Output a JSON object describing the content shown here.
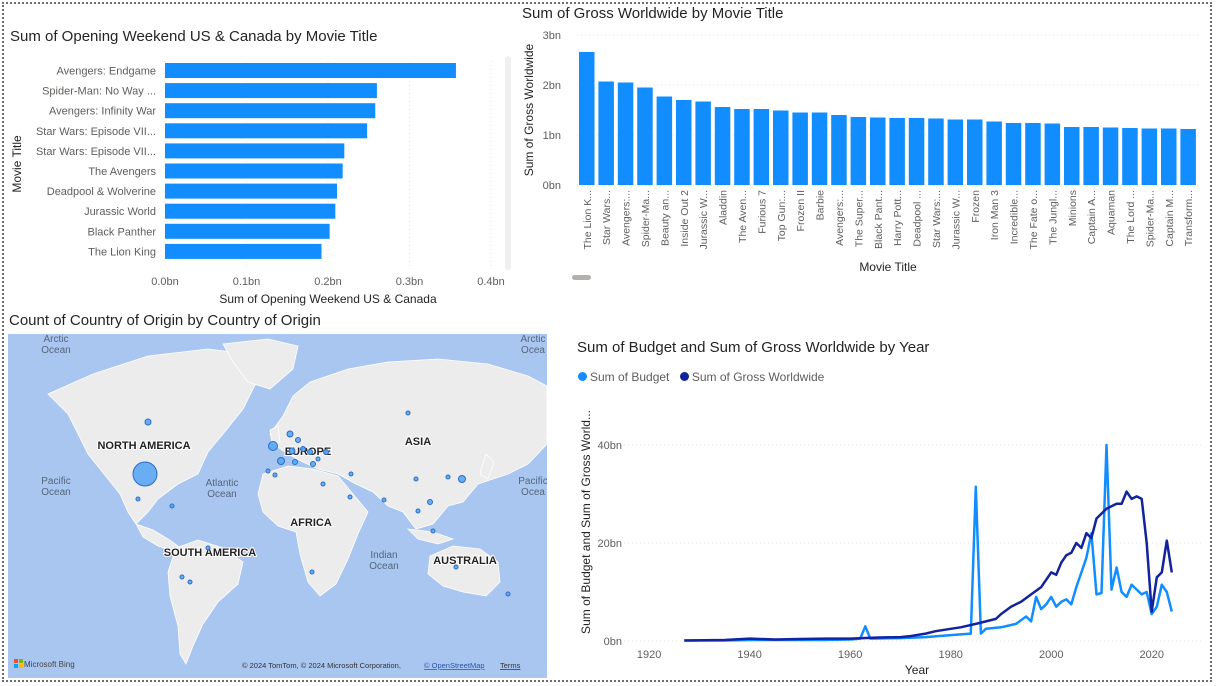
{
  "colors": {
    "bar": "#118dff",
    "budget": "#118dff",
    "gross": "#12239e",
    "map_water": "#a9c6f0",
    "map_land": "#eeeeee",
    "bubble": "#5ba6f5"
  },
  "opening_chart": {
    "title": "Sum of Opening Weekend US & Canada by Movie Title",
    "xlabel": "Sum of Opening Weekend US & Canada",
    "ylabel": "Movie Title",
    "chart_data": {
      "type": "bar",
      "orientation": "horizontal",
      "categories": [
        "Avengers: Endgame",
        "Spider-Man: No Way ...",
        "Avengers: Infinity War",
        "Star Wars: Episode VII...",
        "Star Wars: Episode VII...",
        "The Avengers",
        "Deadpool & Wolverine",
        "Jurassic World",
        "Black Panther",
        "The Lion King"
      ],
      "values": [
        0.357,
        0.26,
        0.258,
        0.248,
        0.22,
        0.218,
        0.211,
        0.209,
        0.202,
        0.192
      ],
      "xticks": [
        "0.0bn",
        "0.1bn",
        "0.2bn",
        "0.3bn",
        "0.4bn"
      ],
      "xlim": [
        0,
        0.4
      ],
      "unit": "bn"
    }
  },
  "gross_chart": {
    "title": "Sum of Gross Worldwide by Movie Title",
    "xlabel": "Movie Title",
    "ylabel": "Sum of Gross Worldwide",
    "chart_data": {
      "type": "bar",
      "categories": [
        "The Lion K...",
        "Star Wars...",
        "Avengers:...",
        "Spider-Ma...",
        "Beauty an...",
        "Inside Out 2",
        "Jurassic W...",
        "Aladdin",
        "The Aven...",
        "Furious 7",
        "Top Gun:...",
        "Frozen II",
        "Barbie",
        "Avengers:...",
        "The Super...",
        "Black Pant...",
        "Harry Pott...",
        "Deadpool ...",
        "Star Wars:...",
        "Jurassic W...",
        "Frozen",
        "Iron Man 3",
        "Incredible...",
        "The Fate o...",
        "The Jungl...",
        "Minions",
        "Captain A...",
        "Aquaman",
        "The Lord ...",
        "Spider-Ma...",
        "Captain M...",
        "Transform..."
      ],
      "values": [
        2.66,
        2.07,
        2.05,
        1.95,
        1.77,
        1.7,
        1.67,
        1.56,
        1.52,
        1.52,
        1.49,
        1.45,
        1.45,
        1.4,
        1.36,
        1.35,
        1.34,
        1.34,
        1.33,
        1.31,
        1.31,
        1.27,
        1.24,
        1.24,
        1.23,
        1.16,
        1.16,
        1.15,
        1.14,
        1.13,
        1.13,
        1.12
      ],
      "yticks": [
        "0bn",
        "1bn",
        "2bn",
        "3bn"
      ],
      "ylim": [
        0,
        3
      ],
      "unit": "bn"
    }
  },
  "map_chart": {
    "title": "Count of Country of Origin by Country of Origin",
    "labels": {
      "arctic_left": "Arctic\nOcean",
      "arctic_right": "Arctic\nOcea",
      "north_america": "NORTH AMERICA",
      "europe": "EUROPE",
      "asia": "ASIA",
      "atlantic": "Atlantic\nOcean",
      "pacific_left": "Pacific\nOcean",
      "pacific_right": "Pacific\nOcea",
      "africa": "AFRICA",
      "south_america": "SOUTH AMERICA",
      "indian": "Indian\nOcean",
      "australia": "AUSTRALIA"
    },
    "logo": "Microsoft Bing",
    "attribution": "© 2024 TomTom, © 2024 Microsoft Corporation,",
    "osm": "© OpenStreetMap",
    "terms": "Terms"
  },
  "line_chart": {
    "title": "Sum of Budget and Sum of Gross Worldwide by Year",
    "xlabel": "Year",
    "ylabel": "Sum of Budget and Sum of Gross World...",
    "legend": [
      "Sum of Budget",
      "Sum of Gross Worldwide"
    ],
    "chart_data": {
      "type": "line",
      "xlim": [
        1915,
        2030
      ],
      "ylim": [
        0,
        40
      ],
      "xticks": [
        "1920",
        "1940",
        "1960",
        "1980",
        "2000",
        "2020"
      ],
      "yticks": [
        "0bn",
        "20bn",
        "40bn"
      ],
      "unit": "bn",
      "series": [
        {
          "name": "Sum of Budget",
          "x": [
            1927,
            1935,
            1940,
            1945,
            1950,
            1955,
            1960,
            1962,
            1963,
            1964,
            1970,
            1975,
            1980,
            1984,
            1985,
            1986,
            1987,
            1990,
            1993,
            1995,
            1996,
            1997,
            1998,
            1999,
            2000,
            2001,
            2002,
            2003,
            2004,
            2005,
            2006,
            2007,
            2008,
            2009,
            2010,
            2011,
            2012,
            2013,
            2014,
            2015,
            2016,
            2017,
            2018,
            2019,
            2020,
            2021,
            2022,
            2023,
            2024
          ],
          "values": [
            0.1,
            0.1,
            0.2,
            0.2,
            0.2,
            0.2,
            0.3,
            0.5,
            3.0,
            0.5,
            0.6,
            0.8,
            1.2,
            1.5,
            31.5,
            1.5,
            2.5,
            2.8,
            3.5,
            5.0,
            4.0,
            9.0,
            6.5,
            7.5,
            9.0,
            7.0,
            8.0,
            8.5,
            7.5,
            11.0,
            14.0,
            17.0,
            22.0,
            9.5,
            9.8,
            40.0,
            10.5,
            15.0,
            10.0,
            9.0,
            11.5,
            10.5,
            9.5,
            10.0,
            5.5,
            7.0,
            11.5,
            10.0,
            6.0
          ]
        },
        {
          "name": "Sum of Gross Worldwide",
          "x": [
            1927,
            1935,
            1940,
            1945,
            1950,
            1955,
            1960,
            1965,
            1970,
            1972,
            1975,
            1977,
            1980,
            1982,
            1985,
            1987,
            1989,
            1990,
            1992,
            1994,
            1996,
            1998,
            2000,
            2001,
            2002,
            2003,
            2004,
            2005,
            2006,
            2007,
            2008,
            2009,
            2010,
            2011,
            2012,
            2013,
            2014,
            2015,
            2016,
            2017,
            2018,
            2019,
            2020,
            2021,
            2022,
            2023,
            2024
          ],
          "values": [
            0.1,
            0.2,
            0.5,
            0.3,
            0.4,
            0.5,
            0.5,
            0.7,
            0.8,
            1.0,
            1.5,
            2.0,
            2.5,
            2.8,
            3.5,
            4.0,
            4.5,
            5.5,
            7.0,
            8.0,
            9.5,
            11.0,
            14.0,
            13.5,
            16.0,
            17.5,
            18.0,
            20.0,
            19.0,
            22.0,
            21.0,
            25.0,
            26.0,
            27.0,
            27.5,
            28.0,
            28.0,
            30.5,
            29.0,
            29.5,
            29.0,
            20.0,
            6.0,
            13.0,
            14.0,
            20.5,
            14.0
          ]
        }
      ]
    }
  }
}
